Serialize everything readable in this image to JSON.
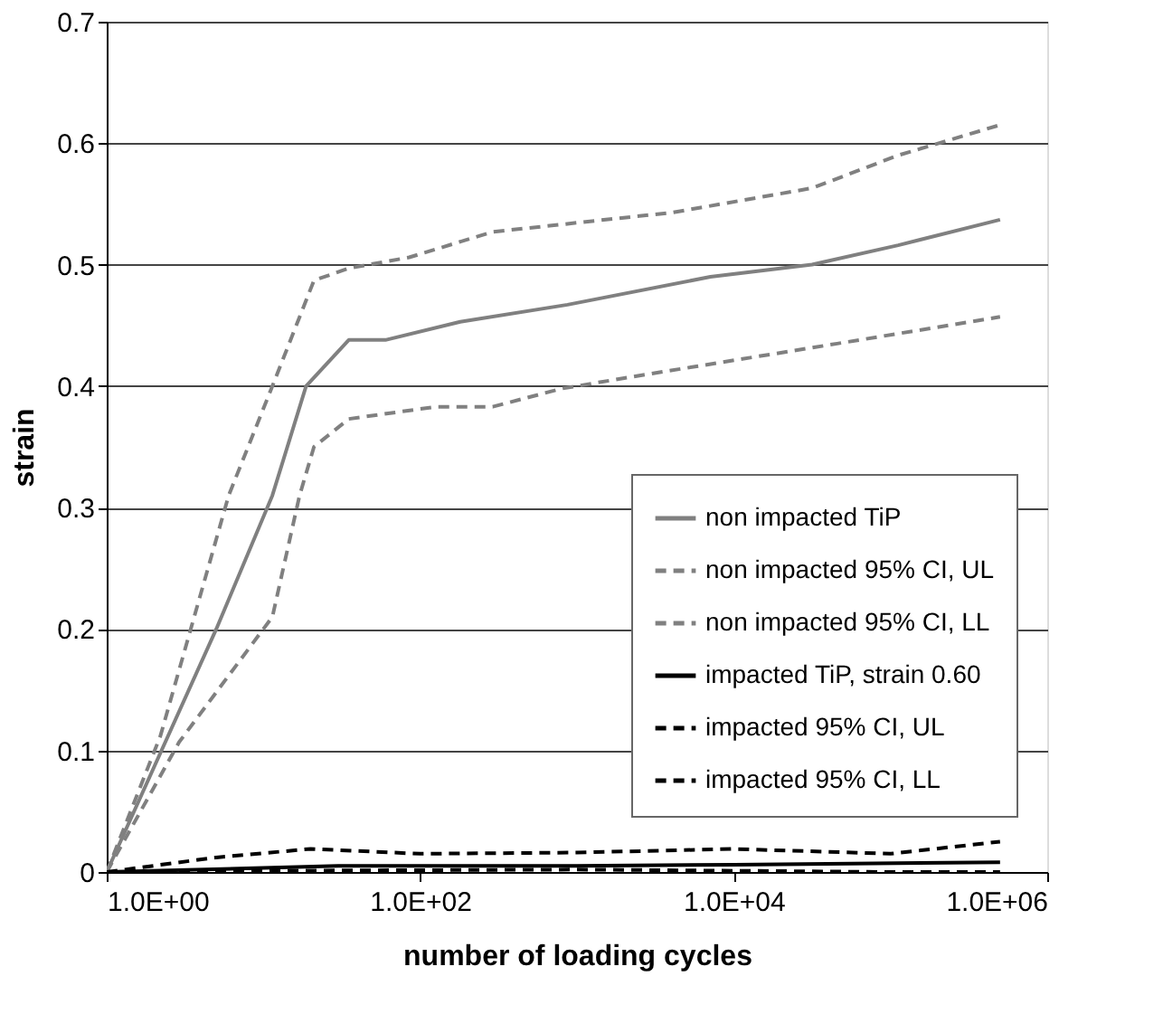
{
  "chart_data": {
    "type": "line",
    "xlabel": "number of loading cycles",
    "ylabel": "strain",
    "log": "x",
    "grid": "y",
    "legend": "right",
    "marker": "none",
    "xlim": [
      1,
      1000000
    ],
    "xticks": [
      {
        "value": 1,
        "label": "1.0E+00"
      },
      {
        "value": 100,
        "label": "1.0E+02"
      },
      {
        "value": 10000,
        "label": "1.0E+04"
      },
      {
        "value": 1000000,
        "label": "1.0E+06"
      }
    ],
    "ylim": [
      0,
      0.7
    ],
    "yticks": [
      0,
      0.1,
      0.2,
      0.3,
      0.4,
      0.5,
      0.6,
      0.7
    ],
    "series": [
      {
        "name": "non impacted TiP",
        "color": "#808080",
        "line_style": "solid",
        "x": [
          1,
          5,
          11.4,
          18.7,
          35,
          60,
          180,
          870,
          7100,
          31600,
          112000,
          500000
        ],
        "values": [
          0,
          0.2,
          0.31,
          0.4,
          0.438,
          0.438,
          0.453,
          0.467,
          0.49,
          0.5,
          0.516,
          0.537
        ]
      },
      {
        "name": "non impacted 95% CI, UL",
        "color": "#808080",
        "line_style": "dashed",
        "x": [
          1,
          2.2,
          6,
          11.4,
          21,
          35,
          85,
          290,
          4100,
          31600,
          112000,
          500000
        ],
        "values": [
          0,
          0.112,
          0.31,
          0.4,
          0.487,
          0.497,
          0.506,
          0.527,
          0.543,
          0.563,
          0.59,
          0.615
        ]
      },
      {
        "name": "non impacted 95% CI, LL",
        "color": "#808080",
        "line_style": "dashed",
        "x": [
          1,
          2.9,
          11.4,
          17,
          21,
          35,
          126,
          290,
          800,
          2900,
          45700,
          500000
        ],
        "values": [
          0,
          0.107,
          0.21,
          0.31,
          0.35,
          0.373,
          0.383,
          0.383,
          0.398,
          0.41,
          0.435,
          0.457
        ]
      },
      {
        "name": "impacted TiP, strain 0.60",
        "color": "#000000",
        "line_style": "solid",
        "x": [
          1,
          30,
          1000,
          10000,
          500000
        ],
        "values": [
          0,
          0.005,
          0.005,
          0.006,
          0.008
        ]
      },
      {
        "name": "impacted 95% CI, UL",
        "color": "#000000",
        "line_style": "dashed",
        "x": [
          1,
          5,
          20,
          100,
          1000,
          10000,
          100000,
          500000
        ],
        "values": [
          0,
          0.012,
          0.019,
          0.015,
          0.016,
          0.019,
          0.015,
          0.025
        ]
      },
      {
        "name": "impacted 95% CI, LL",
        "color": "#000000",
        "line_style": "dashed",
        "x": [
          1,
          10,
          1000,
          100000,
          500000
        ],
        "values": [
          0,
          0.001,
          0.002,
          0,
          0
        ]
      }
    ]
  }
}
